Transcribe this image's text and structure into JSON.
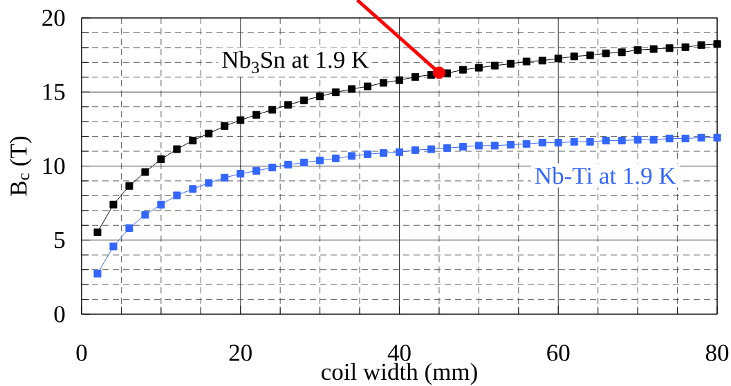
{
  "chart_data": {
    "type": "line",
    "xlabel": "coil width (mm)",
    "ylabel": "B$_{c}$ (T)",
    "xlim": [
      0,
      80
    ],
    "xticks": [
      0,
      {
        "value": 5,
        "label": null
      },
      {
        "value": 10,
        "label": null
      },
      {
        "value": 15,
        "label": null
      },
      20,
      {
        "value": 25,
        "label": null
      },
      {
        "value": 30,
        "label": null
      },
      {
        "value": 35,
        "label": null
      },
      40,
      {
        "value": 45,
        "label": null
      },
      {
        "value": 50,
        "label": null
      },
      {
        "value": 55,
        "label": null
      },
      60,
      {
        "value": 65,
        "label": null
      },
      {
        "value": 70,
        "label": null
      },
      {
        "value": 75,
        "label": null
      },
      80
    ],
    "ylim": [
      0,
      20
    ],
    "yticks": [
      0,
      {
        "value": 1,
        "label": null
      },
      {
        "value": 2,
        "label": null
      },
      {
        "value": 3,
        "label": null
      },
      {
        "value": 4,
        "label": null
      },
      5,
      {
        "value": 6,
        "label": null
      },
      {
        "value": 7,
        "label": null
      },
      {
        "value": 8,
        "label": null
      },
      {
        "value": 9,
        "label": null
      },
      10,
      {
        "value": 11,
        "label": null
      },
      {
        "value": 12,
        "label": null
      },
      {
        "value": 13,
        "label": null
      },
      {
        "value": 14,
        "label": null
      },
      15,
      {
        "value": 16,
        "label": null
      },
      {
        "value": 17,
        "label": null
      },
      {
        "value": 18,
        "label": null
      },
      {
        "value": 19,
        "label": null
      },
      20
    ],
    "grid": true,
    "marker": "square",
    "line_style": "solid",
    "x": [
      2,
      4,
      6,
      8,
      10,
      12,
      14,
      16,
      18,
      20,
      22,
      24,
      26,
      28,
      30,
      32,
      34,
      36,
      38,
      40,
      42,
      44,
      46,
      48,
      50,
      52,
      54,
      56,
      58,
      60,
      62,
      64,
      66,
      68,
      70,
      72,
      74,
      76,
      78,
      80
    ],
    "series": [
      {
        "name": "Nb$_{3}$Sn at 1.9 K",
        "color": "#000000",
        "values": [
          5.53,
          7.4,
          8.66,
          9.6,
          10.46,
          11.14,
          11.72,
          12.2,
          12.7,
          13.1,
          13.46,
          13.8,
          14.13,
          14.44,
          14.7,
          14.98,
          15.2,
          15.38,
          15.62,
          15.8,
          16.02,
          16.16,
          16.27,
          16.5,
          16.64,
          16.78,
          16.91,
          17.06,
          17.12,
          17.26,
          17.4,
          17.48,
          17.61,
          17.68,
          17.84,
          17.9,
          17.96,
          18.03,
          18.17,
          18.24
        ]
      },
      {
        "name": "Nb-Ti at 1.9 K",
        "color": "#3366ff",
        "values": [
          2.74,
          4.57,
          5.81,
          6.71,
          7.4,
          8.02,
          8.45,
          8.86,
          9.22,
          9.48,
          9.68,
          9.9,
          10.1,
          10.24,
          10.38,
          10.52,
          10.68,
          10.8,
          10.88,
          10.94,
          11.08,
          11.14,
          11.22,
          11.3,
          11.38,
          11.38,
          11.44,
          11.5,
          11.58,
          11.58,
          11.64,
          11.64,
          11.72,
          11.72,
          11.78,
          11.78,
          11.86,
          11.86,
          11.92,
          11.92
        ]
      },
      {
        "type": "scatter",
        "color": "#ff0000",
        "marker": "circle",
        "x": [
          45
        ],
        "values": [
          16.3
        ]
      }
    ]
  }
}
